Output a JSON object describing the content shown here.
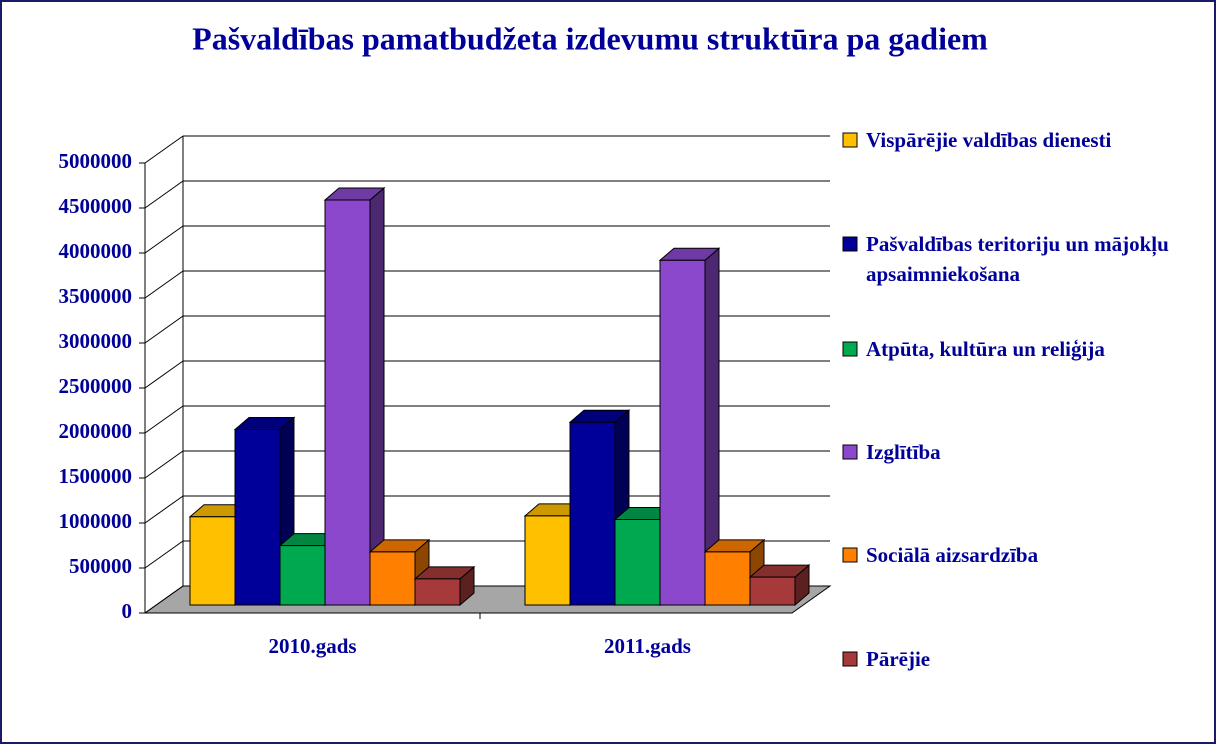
{
  "chart_data": {
    "type": "bar3d",
    "title": "Pašvaldības pamatbudžeta izdevumu struktūra pa gadiem",
    "categories": [
      "2010.gads",
      "2011.gads"
    ],
    "series": [
      {
        "name": "Vispārējie valdības dienesti",
        "color": "#FFC000",
        "values": [
          980000,
          990000
        ]
      },
      {
        "name": "Pašvaldības teritoriju un mājokļu apsaimniekošana",
        "color": "#000099",
        "values": [
          1950000,
          2030000
        ]
      },
      {
        "name": "Atpūta, kultūra un reliģija",
        "color": "#00A850",
        "values": [
          660000,
          950000
        ]
      },
      {
        "name": "Izglītība",
        "color": "#8B48CC",
        "values": [
          4500000,
          3830000
        ]
      },
      {
        "name": "Sociālā aizsardzība",
        "color": "#FF7F00",
        "values": [
          590000,
          590000
        ]
      },
      {
        "name": "Pārējie",
        "color": "#A63A3A",
        "values": [
          290000,
          310000
        ]
      }
    ],
    "ylim": [
      0,
      5000000
    ],
    "yticks": [
      0,
      500000,
      1000000,
      1500000,
      2000000,
      2500000,
      3000000,
      3500000,
      4000000,
      4500000,
      5000000
    ],
    "grid": true,
    "legend": "right"
  }
}
